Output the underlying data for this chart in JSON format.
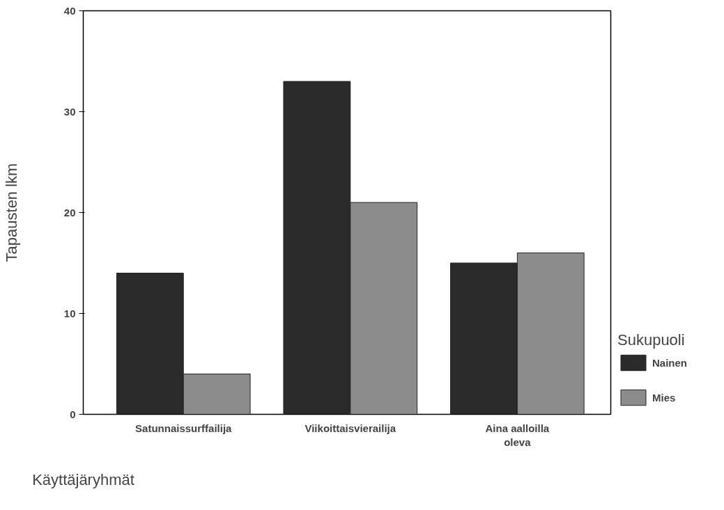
{
  "chart_data": {
    "type": "bar",
    "xlabel": "Käyttäjäryhmät",
    "ylabel": "Tapausten lkm",
    "legend_title": "Sukupuoli",
    "categories": [
      "Satunnaissurffailija",
      "Viikoittaisvierailija",
      "Aina aalloilla oleva"
    ],
    "series": [
      {
        "name": "Nainen",
        "color": "#2a2a2a",
        "values": [
          14,
          33,
          15
        ]
      },
      {
        "name": "Mies",
        "color": "#8c8c8c",
        "values": [
          4,
          21,
          16
        ]
      }
    ],
    "ylim": [
      0,
      40
    ],
    "yticks": [
      0,
      10,
      20,
      30,
      40
    ],
    "grid": false,
    "legend": "right"
  }
}
